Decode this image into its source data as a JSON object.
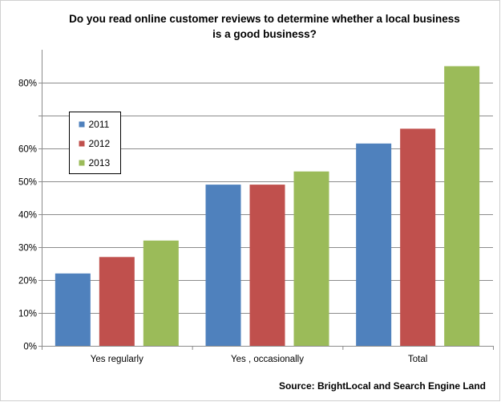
{
  "chart_data": {
    "type": "bar",
    "title_lines": [
      "Do you read online customer reviews to determine whether a local business",
      "is a good business?"
    ],
    "categories": [
      "Yes regularly",
      "Yes , occasionally",
      "Total"
    ],
    "series": [
      {
        "name": "2011",
        "color": "#4F81BD",
        "values": [
          22,
          49,
          61.5
        ]
      },
      {
        "name": "2012",
        "color": "#C0504D",
        "values": [
          27,
          49,
          66
        ]
      },
      {
        "name": "2013",
        "color": "#9BBB59",
        "values": [
          32,
          53,
          85
        ]
      }
    ],
    "ylim": [
      0,
      90
    ],
    "yticks": [
      0,
      10,
      20,
      30,
      40,
      50,
      60,
      70,
      80
    ],
    "ytick_labels": [
      "0%",
      "10%",
      "20%",
      "30%",
      "40%",
      "50%",
      "60%",
      "",
      "80%"
    ],
    "grid": true,
    "legend_position": "left, inside plot area",
    "source": "Source: BrightLocal and Search Engine Land"
  }
}
